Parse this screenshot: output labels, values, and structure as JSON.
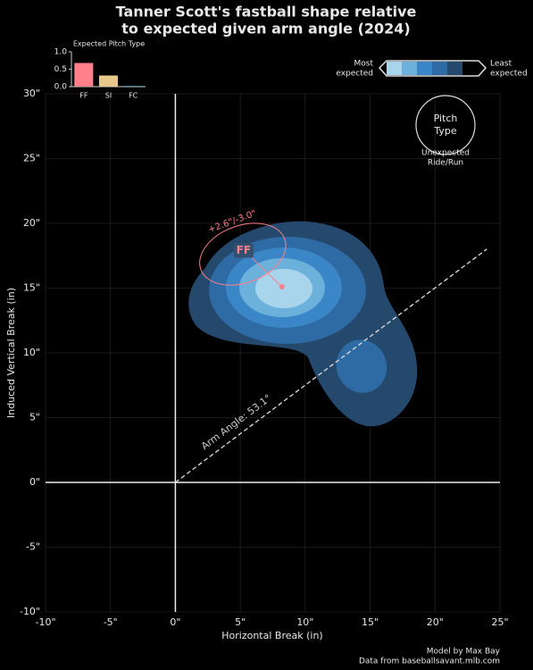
{
  "chart_data": [
    {
      "type": "scatter",
      "title": [
        "Tanner Scott's fastball shape relative",
        "to expected given arm angle (2024)"
      ],
      "x_label": "Horizontal Break (in)",
      "y_label": "Induced Vertical Break (in)",
      "xlim": [
        -10,
        25
      ],
      "ylim": [
        -10,
        30
      ],
      "xticks": [
        {
          "value": -10,
          "label": "-10\""
        },
        {
          "value": -5,
          "label": "-5\""
        },
        {
          "value": 0,
          "label": "0\""
        },
        {
          "value": 5,
          "label": "5\""
        },
        {
          "value": 10,
          "label": "10\""
        },
        {
          "value": 15,
          "label": "15\""
        },
        {
          "value": 20,
          "label": "20\""
        },
        {
          "value": 25,
          "label": "25\""
        }
      ],
      "yticks": [
        {
          "value": -10,
          "label": "-10\""
        },
        {
          "value": -5,
          "label": "-5\""
        },
        {
          "value": 0,
          "label": "0\""
        },
        {
          "value": 5,
          "label": "5\""
        },
        {
          "value": 10,
          "label": "10\""
        },
        {
          "value": 15,
          "label": "15\""
        },
        {
          "value": 20,
          "label": "20\""
        },
        {
          "value": 25,
          "label": "25\""
        },
        {
          "value": 30,
          "label": "30\""
        }
      ],
      "grid": true,
      "series": [
        {
          "name": "FF",
          "color": "#ff7f8a",
          "x": [
            8.2
          ],
          "y": [
            15.1
          ]
        }
      ],
      "expected": {
        "x": 5.6,
        "y": 18.1
      },
      "difference_label": "+2.6\"/-3.0\"",
      "arm_angle": 53.1,
      "arm_angle_label": "Arm Angle: 53.1°",
      "legend_most": [
        "Most",
        "expected"
      ],
      "legend_least": [
        "Least",
        "expected"
      ],
      "pitch_type_key": [
        "Pitch",
        "Type"
      ],
      "unexpected_key": [
        "Unexpected",
        "Ride/Run"
      ],
      "credits": [
        "Model by Max Bay",
        "Data from baseballsavant.mlb.com"
      ]
    },
    {
      "type": "bar",
      "title": "Expected Pitch Type",
      "categories": [
        "FF",
        "SI",
        "FC"
      ],
      "values": [
        0.68,
        0.32,
        0.02
      ],
      "colors": [
        "#ff7f8a",
        "#e8c88a",
        "#5fa8c8"
      ],
      "ylim": [
        0,
        1
      ],
      "yticks": [
        {
          "value": 0,
          "label": "0.0"
        },
        {
          "value": 0.5,
          "label": "0.5"
        },
        {
          "value": 1,
          "label": "1.0"
        }
      ]
    }
  ]
}
